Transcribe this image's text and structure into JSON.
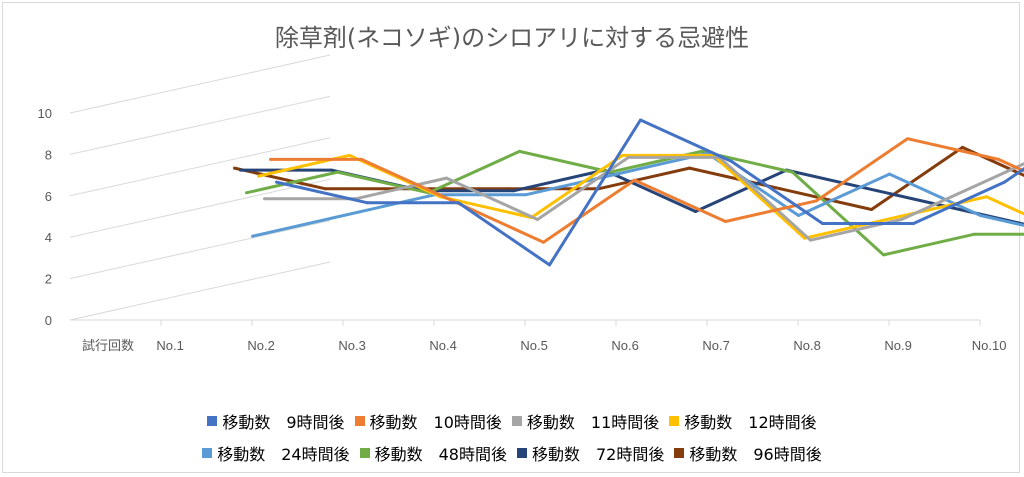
{
  "chart_data": {
    "type": "line",
    "title": "除草剤(ネコソギ)のシロアリに対する忌避性",
    "xlabel": "",
    "ylabel": "",
    "depth_axis_label": "試行回数",
    "categories": [
      "No.1",
      "No.2",
      "No.3",
      "No.4",
      "No.5",
      "No.6",
      "No.7",
      "No.8",
      "No.9",
      "No.10"
    ],
    "ylim": [
      0,
      10
    ],
    "yticks": [
      "0",
      "2",
      "4",
      "6",
      "8",
      "10"
    ],
    "grid": true,
    "legend_position": "bottom",
    "style": "3d-line",
    "series": [
      {
        "name": "移動数　9時間後",
        "color": "#4472c4",
        "values": [
          7,
          6,
          6,
          3,
          10,
          8,
          5,
          5,
          7,
          10
        ]
      },
      {
        "name": "移動数　10時間後",
        "color": "#ed7d31",
        "values": [
          8,
          8,
          6,
          4,
          7,
          5,
          6,
          9,
          8,
          6
        ]
      },
      {
        "name": "移動数　11時間後",
        "color": "#a5a5a5",
        "values": [
          6,
          6,
          7,
          5,
          8,
          8,
          4,
          5,
          7,
          9
        ]
      },
      {
        "name": "移動数　12時間後",
        "color": "#ffc000",
        "values": [
          7,
          8,
          6,
          5,
          8,
          8,
          4,
          5,
          6,
          4
        ]
      },
      {
        "name": "移動数　24時間後",
        "color": "#5b9bd5",
        "values": [
          4,
          5,
          6,
          6,
          7,
          8,
          5,
          7,
          5,
          4
        ]
      },
      {
        "name": "移動数　48時間後",
        "color": "#70ad47",
        "values": [
          6,
          7,
          6,
          8,
          7,
          8,
          7,
          3,
          4,
          4
        ]
      },
      {
        "name": "移動数　72時間後",
        "color": "#264478",
        "values": [
          7,
          7,
          6,
          6,
          7,
          5,
          7,
          6,
          5,
          4
        ]
      },
      {
        "name": "移動数　96時間後",
        "color": "#843c0c",
        "values": [
          7,
          6,
          6,
          6,
          6,
          7,
          6,
          5,
          8,
          6
        ]
      }
    ]
  }
}
